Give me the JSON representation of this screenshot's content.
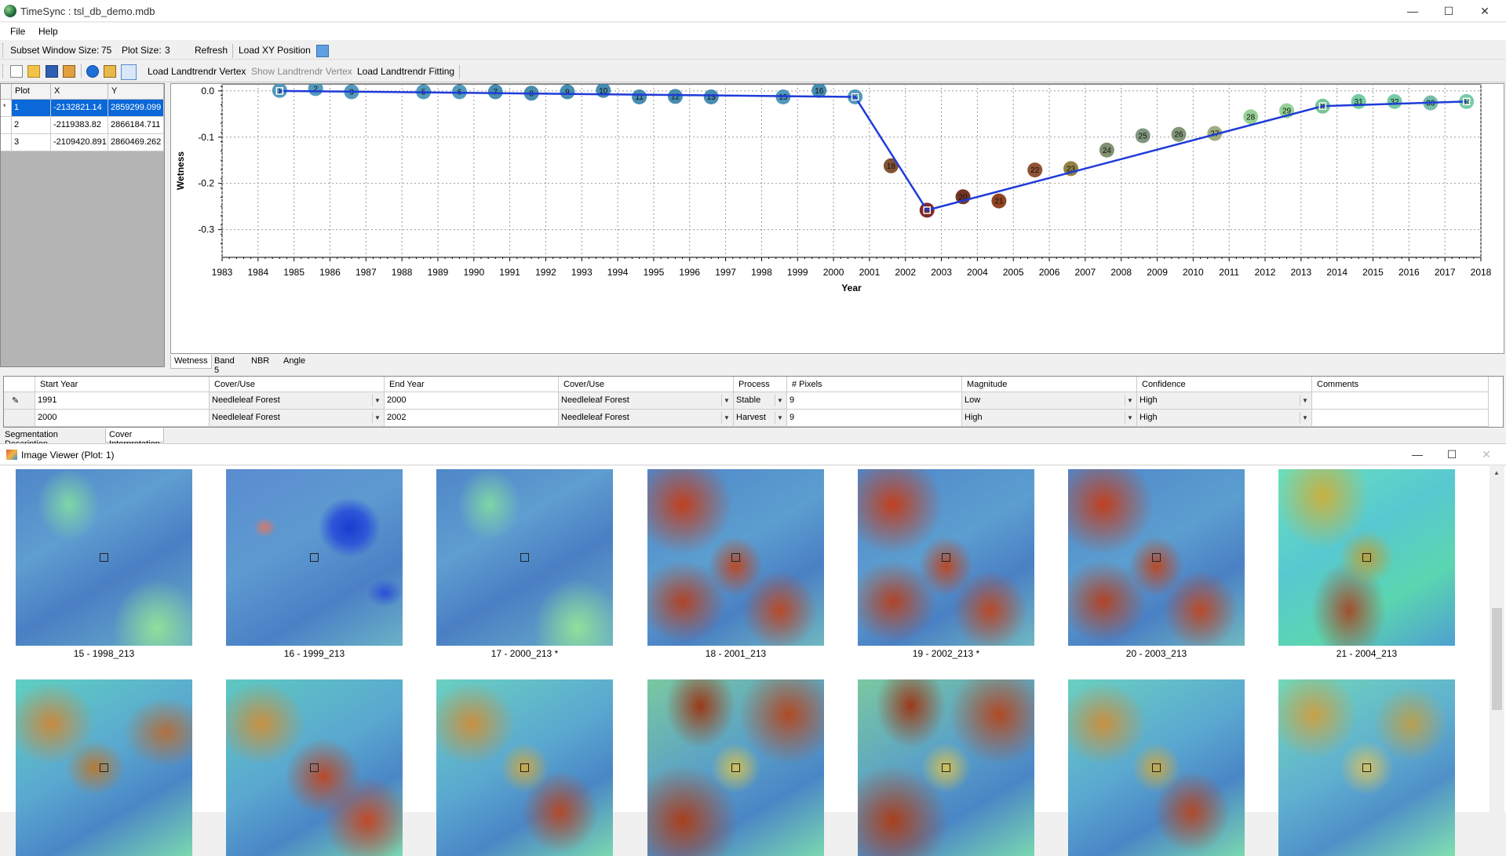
{
  "window": {
    "title": "TimeSync : tsl_db_demo.mdb",
    "minimize": "—",
    "maximize": "☐",
    "close": "✕"
  },
  "menu": {
    "file": "File",
    "help": "Help"
  },
  "toolbar1": {
    "subset_label": "Subset Window Size:",
    "subset_value": "75",
    "plot_size_label": "Plot Size:",
    "plot_size_value": "3",
    "refresh": "Refresh",
    "load_xy": "Load XY Position"
  },
  "toolbar2": {
    "icons": [
      "new-icon",
      "open-icon",
      "save-icon",
      "export-icon",
      "info-icon",
      "folder-icon",
      "curve-icon"
    ],
    "load_vertex": "Load Landtrendr Vertex",
    "show_vertex": "Show Landtrendr Vertex",
    "load_fitting": "Load Landtrendr Fitting"
  },
  "plots": {
    "headers": [
      "Plot",
      "X",
      "Y"
    ],
    "rows": [
      {
        "marker": "*",
        "plot": "1",
        "x": "-2132821.14",
        "y": "2859299.099",
        "selected": true
      },
      {
        "marker": "",
        "plot": "2",
        "x": "-2119383.82",
        "y": "2866184.711",
        "selected": false
      },
      {
        "marker": "",
        "plot": "3",
        "x": "-2109420.891",
        "y": "2860469.262",
        "selected": false
      }
    ]
  },
  "chart_data": {
    "type": "scatter",
    "xlabel": "Year",
    "ylabel": "Wetness",
    "xlim": [
      1983,
      2018
    ],
    "ylim": [
      -0.36,
      0.015
    ],
    "x_ticks": [
      1983,
      1984,
      1985,
      1986,
      1987,
      1988,
      1989,
      1990,
      1991,
      1992,
      1993,
      1994,
      1995,
      1996,
      1997,
      1998,
      1999,
      2000,
      2001,
      2002,
      2003,
      2004,
      2005,
      2006,
      2007,
      2008,
      2009,
      2010,
      2011,
      2012,
      2013,
      2014,
      2015,
      2016,
      2017,
      2018
    ],
    "y_ticks": [
      "0.0",
      "-0.1",
      "-0.2",
      "-0.3"
    ],
    "y_tick_values": [
      0,
      -0.1,
      -0.2,
      -0.3
    ],
    "grid": true,
    "points": [
      {
        "label": "1",
        "year": 1984.6,
        "value": 0.001,
        "color": "#4a93b8"
      },
      {
        "label": "2",
        "year": 1985.6,
        "value": 0.005,
        "color": "#4a93b8"
      },
      {
        "label": "3",
        "year": 1986.6,
        "value": -0.002,
        "color": "#4a93b8"
      },
      {
        "label": "5",
        "year": 1988.6,
        "value": -0.002,
        "color": "#4a93b8"
      },
      {
        "label": "6",
        "year": 1989.6,
        "value": -0.002,
        "color": "#4a93b8"
      },
      {
        "label": "7",
        "year": 1990.6,
        "value": -0.002,
        "color": "#3d86ad"
      },
      {
        "label": "8",
        "year": 1991.6,
        "value": -0.005,
        "color": "#3d86ad"
      },
      {
        "label": "9",
        "year": 1992.6,
        "value": -0.002,
        "color": "#3d86ad"
      },
      {
        "label": "10",
        "year": 1993.6,
        "value": 0.001,
        "color": "#3d86ad"
      },
      {
        "label": "11",
        "year": 1994.6,
        "value": -0.013,
        "color": "#3d86ad"
      },
      {
        "label": "12",
        "year": 1995.6,
        "value": -0.012,
        "color": "#3d86ad"
      },
      {
        "label": "13",
        "year": 1996.6,
        "value": -0.013,
        "color": "#3d86ad"
      },
      {
        "label": "15",
        "year": 1998.6,
        "value": -0.013,
        "color": "#4a93b8"
      },
      {
        "label": "16",
        "year": 1999.6,
        "value": 0.001,
        "color": "#3d86ad"
      },
      {
        "label": "17",
        "year": 2000.6,
        "value": -0.013,
        "color": "#4a93b8"
      },
      {
        "label": "18",
        "year": 2001.6,
        "value": -0.162,
        "color": "#7a4a2a"
      },
      {
        "label": "19",
        "year": 2002.6,
        "value": -0.258,
        "color": "#7a1d1d"
      },
      {
        "label": "20",
        "year": 2003.6,
        "value": -0.229,
        "color": "#6b2a1a"
      },
      {
        "label": "21",
        "year": 2004.6,
        "value": -0.238,
        "color": "#8a3a14"
      },
      {
        "label": "22",
        "year": 2005.6,
        "value": -0.171,
        "color": "#8a4a2a"
      },
      {
        "label": "23",
        "year": 2006.6,
        "value": -0.168,
        "color": "#8a7a3a"
      },
      {
        "label": "24",
        "year": 2007.6,
        "value": -0.128,
        "color": "#7a8a6a"
      },
      {
        "label": "25",
        "year": 2008.6,
        "value": -0.097,
        "color": "#7a907a"
      },
      {
        "label": "26",
        "year": 2009.6,
        "value": -0.094,
        "color": "#7a9070"
      },
      {
        "label": "27",
        "year": 2010.6,
        "value": -0.092,
        "color": "#9aaa7a"
      },
      {
        "label": "28",
        "year": 2011.6,
        "value": -0.056,
        "color": "#8fcf8f"
      },
      {
        "label": "29",
        "year": 2012.6,
        "value": -0.043,
        "color": "#8fd08f"
      },
      {
        "label": "30",
        "year": 2013.6,
        "value": -0.033,
        "color": "#6fc08f"
      },
      {
        "label": "31",
        "year": 2014.6,
        "value": -0.023,
        "color": "#6fc8a0"
      },
      {
        "label": "32",
        "year": 2015.6,
        "value": -0.023,
        "color": "#6fc8a0"
      },
      {
        "label": "33",
        "year": 2016.6,
        "value": -0.026,
        "color": "#6fb8a8"
      },
      {
        "label": "34",
        "year": 2017.6,
        "value": -0.023,
        "color": "#6fc8a0"
      }
    ],
    "fit_line": {
      "color": "#1f3bd8",
      "vertices": [
        [
          1984.6,
          0.0
        ],
        [
          2000.6,
          -0.013
        ],
        [
          2002.6,
          -0.258
        ],
        [
          2013.6,
          -0.033
        ],
        [
          2017.6,
          -0.023
        ]
      ]
    }
  },
  "chart_tabs": [
    "Wetness",
    "Band 5",
    "NBR",
    "Angle"
  ],
  "segments": {
    "headers": [
      "Start Year",
      "Cover/Use",
      "End Year",
      "Cover/Use",
      "Process",
      "# Pixels",
      "Magnitude",
      "Confidence",
      "Comments"
    ],
    "rows": [
      {
        "start": "1991",
        "cover1": "Needleleaf Forest",
        "end": "2000",
        "cover2": "Needleleaf Forest",
        "process": "Stable",
        "pixels": "9",
        "magnitude": "Low",
        "confidence": "High",
        "comments": ""
      },
      {
        "start": "2000",
        "cover1": "Needleleaf Forest",
        "end": "2002",
        "cover2": "Needleleaf Forest",
        "process": "Harvest",
        "pixels": "9",
        "magnitude": "High",
        "confidence": "High",
        "comments": ""
      }
    ]
  },
  "segment_tabs": [
    "Segmentation Description",
    "Cover Interpretation"
  ],
  "image_viewer": {
    "title": "Image Viewer (Plot: 1)",
    "row1": [
      {
        "label": "15 - 1998_213",
        "theme": "blue"
      },
      {
        "label": "16 - 1999_213",
        "theme": "cloud"
      },
      {
        "label": "17 - 2000_213 *",
        "theme": "blue"
      },
      {
        "label": "18 - 2001_213",
        "theme": "harvest"
      },
      {
        "label": "19 - 2002_213 *",
        "theme": "harvest"
      },
      {
        "label": "20 - 2003_213",
        "theme": "harvest"
      },
      {
        "label": "21 - 2004_213",
        "theme": "green"
      }
    ],
    "row2": [
      {
        "label": "",
        "theme": "regrow"
      },
      {
        "label": "",
        "theme": "regrow2"
      },
      {
        "label": "",
        "theme": "regrow3"
      },
      {
        "label": "",
        "theme": "regrow4"
      },
      {
        "label": "",
        "theme": "regrow4"
      },
      {
        "label": "",
        "theme": "regrow3"
      },
      {
        "label": "",
        "theme": "regrow5"
      }
    ]
  }
}
